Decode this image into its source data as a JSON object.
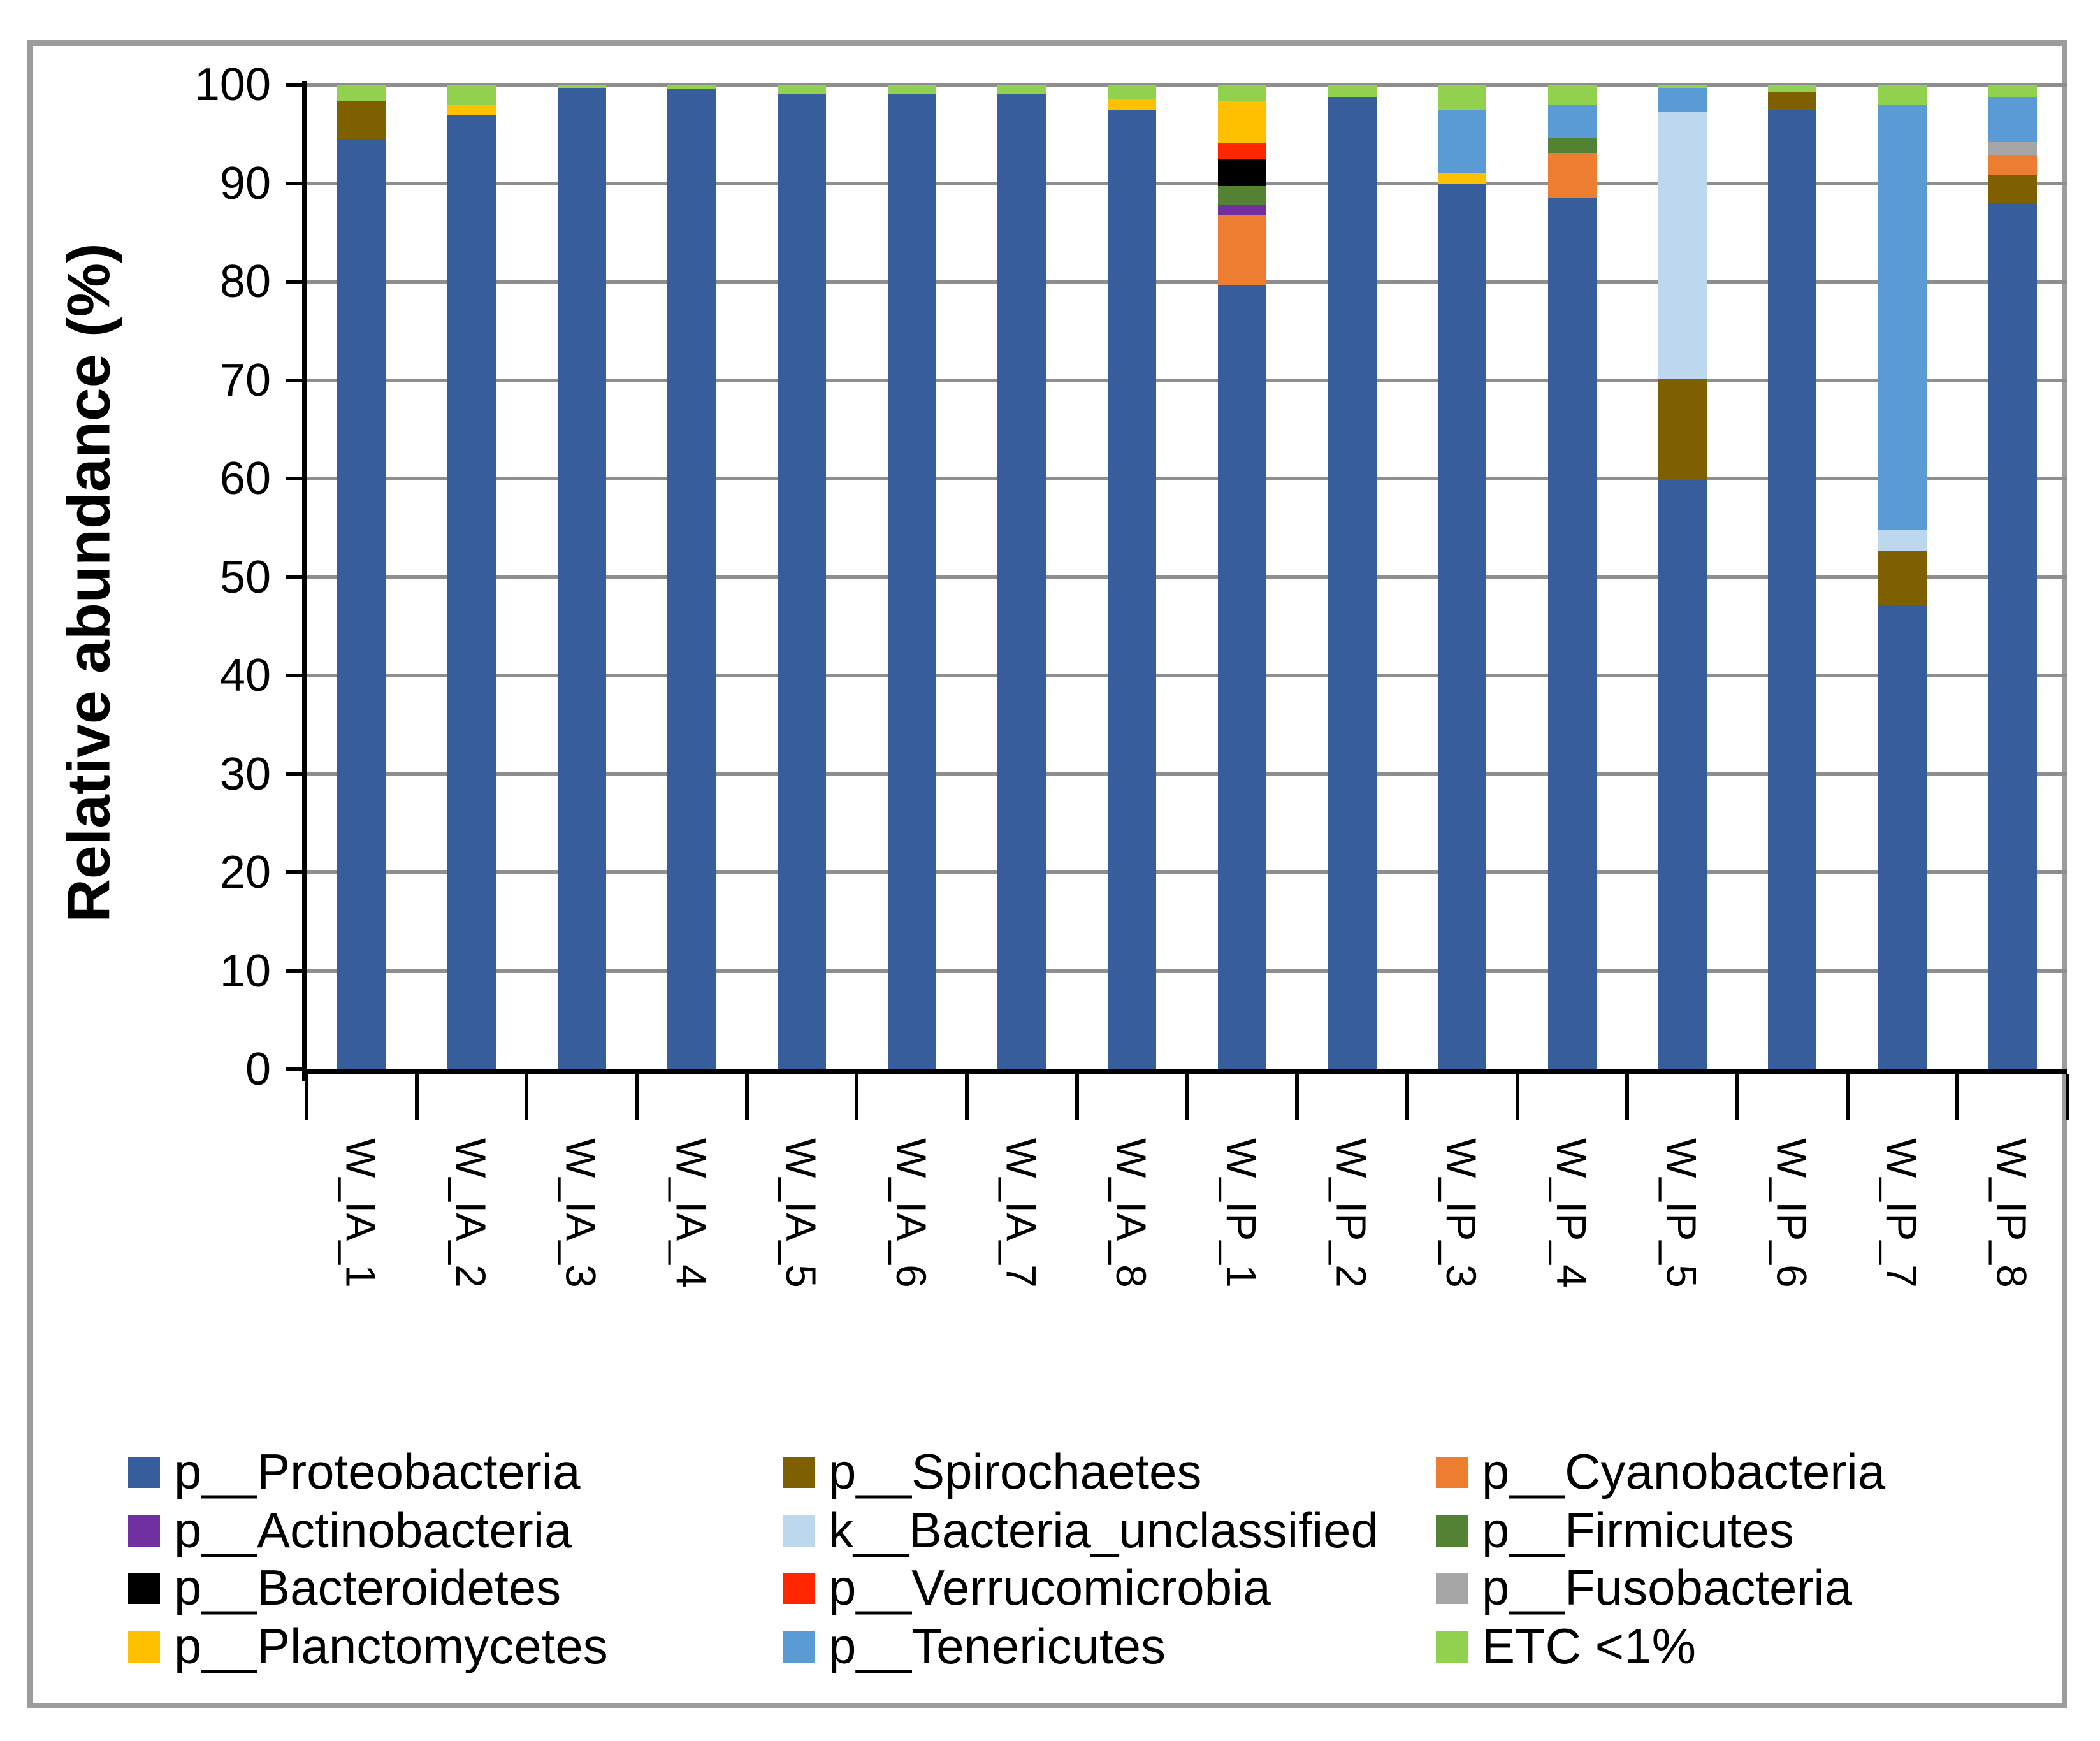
{
  "figure": {
    "background": "#ffffff",
    "border_color": "#9C9C9C",
    "gridline_color": "#8E8E8E",
    "axis_color": "#000000"
  },
  "chart_data": {
    "type": "bar",
    "stacked": true,
    "title": "",
    "xlabel": "",
    "ylabel": "Relative abundance (%)",
    "ylim": [
      0,
      100
    ],
    "yticks": [
      0,
      10,
      20,
      30,
      40,
      50,
      60,
      70,
      80,
      90,
      100
    ],
    "grid": true,
    "legend_position": "bottom",
    "categories": [
      "W_IA_1",
      "W_IA_2",
      "W_IA_3",
      "W_IA_4",
      "W_IA_5",
      "W_IA_6",
      "W_IA_7",
      "W_IA_8",
      "W_IP_1",
      "W_IP_2",
      "W_IP_3",
      "W_IP_4",
      "W_IP_5",
      "W_IP_6",
      "W_IP_7",
      "W_IP_8"
    ],
    "series": [
      {
        "name": "p__Proteobacteria",
        "color": "#385D9B",
        "values": [
          94.5,
          96.9,
          99.7,
          99.6,
          99.0,
          99.1,
          99.0,
          97.5,
          79.7,
          98.8,
          90.0,
          88.5,
          59.9,
          97.5,
          47.2,
          88.0
        ]
      },
      {
        "name": "p__Spirochaetes",
        "color": "#7F6000",
        "values": [
          3.8,
          0,
          0,
          0,
          0,
          0,
          0,
          0,
          0,
          0,
          0,
          0,
          10.2,
          1.8,
          5.5,
          2.9
        ]
      },
      {
        "name": "p__Cyanobacteria",
        "color": "#ED7D31",
        "values": [
          0,
          0,
          0,
          0,
          0,
          0,
          0,
          0,
          7.1,
          0,
          0,
          4.6,
          0,
          0,
          0,
          1.9
        ]
      },
      {
        "name": "p__Actinobacteria",
        "color": "#7030A0",
        "values": [
          0,
          0,
          0,
          0,
          0,
          0,
          0,
          0,
          1.0,
          0,
          0,
          0,
          0,
          0,
          0,
          0
        ]
      },
      {
        "name": "k__Bacteria_unclassified",
        "color": "#BDD7EE",
        "values": [
          0,
          0,
          0,
          0,
          0,
          0,
          0,
          0,
          0,
          0,
          0,
          0,
          27.2,
          0,
          2.1,
          0
        ]
      },
      {
        "name": "p__Firmicutes",
        "color": "#548235",
        "values": [
          0,
          0,
          0,
          0,
          0,
          0,
          0,
          0,
          1.9,
          0,
          0,
          1.5,
          0,
          0,
          0,
          0
        ]
      },
      {
        "name": "p__Bacteroidetes",
        "color": "#000000",
        "values": [
          0,
          0,
          0,
          0,
          0,
          0,
          0,
          0,
          2.8,
          0,
          0,
          0,
          0,
          0,
          0,
          0
        ]
      },
      {
        "name": "p__Verrucomicrobia",
        "color": "#FF2600",
        "values": [
          0,
          0,
          0,
          0,
          0,
          0,
          0,
          0,
          1.6,
          0,
          0,
          0,
          0,
          0,
          0,
          0
        ]
      },
      {
        "name": "p__Fusobacteria",
        "color": "#A6A6A6",
        "values": [
          0,
          0,
          0,
          0,
          0,
          0,
          0,
          0,
          0,
          0,
          0,
          0,
          0,
          0,
          0,
          1.4
        ]
      },
      {
        "name": "p__Planctomycetes",
        "color": "#FFC000",
        "values": [
          0,
          1.1,
          0,
          0,
          0,
          0,
          0,
          1.0,
          4.2,
          0,
          1.0,
          0,
          0,
          0,
          0,
          0
        ]
      },
      {
        "name": "p__Tenericutes",
        "color": "#5B9BD5",
        "values": [
          0,
          0,
          0,
          0,
          0,
          0,
          0,
          0,
          0,
          0,
          6.4,
          3.3,
          2.4,
          0,
          43.2,
          4.6
        ]
      },
      {
        "name": "ETC <1%",
        "color": "#92D050",
        "values": [
          1.7,
          2.0,
          0.3,
          0.4,
          1.0,
          0.9,
          1.0,
          1.5,
          1.7,
          1.2,
          2.6,
          2.1,
          0.3,
          0.7,
          2.0,
          1.2
        ]
      }
    ]
  },
  "legend": {
    "items": [
      {
        "label": "p__Proteobacteria",
        "color": "#385D9B"
      },
      {
        "label": "p__Spirochaetes",
        "color": "#7F6000"
      },
      {
        "label": "p__Cyanobacteria",
        "color": "#ED7D31"
      },
      {
        "label": "p__Actinobacteria",
        "color": "#7030A0"
      },
      {
        "label": "k__Bacteria_unclassified",
        "color": "#BDD7EE"
      },
      {
        "label": "p__Firmicutes",
        "color": "#548235"
      },
      {
        "label": "p__Bacteroidetes",
        "color": "#000000"
      },
      {
        "label": "p__Verrucomicrobia",
        "color": "#FF2600"
      },
      {
        "label": "p__Fusobacteria",
        "color": "#A6A6A6"
      },
      {
        "label": "p__Planctomycetes",
        "color": "#FFC000"
      },
      {
        "label": "p__Tenericutes",
        "color": "#5B9BD5"
      },
      {
        "label": "ETC <1%",
        "color": "#92D050"
      }
    ]
  }
}
